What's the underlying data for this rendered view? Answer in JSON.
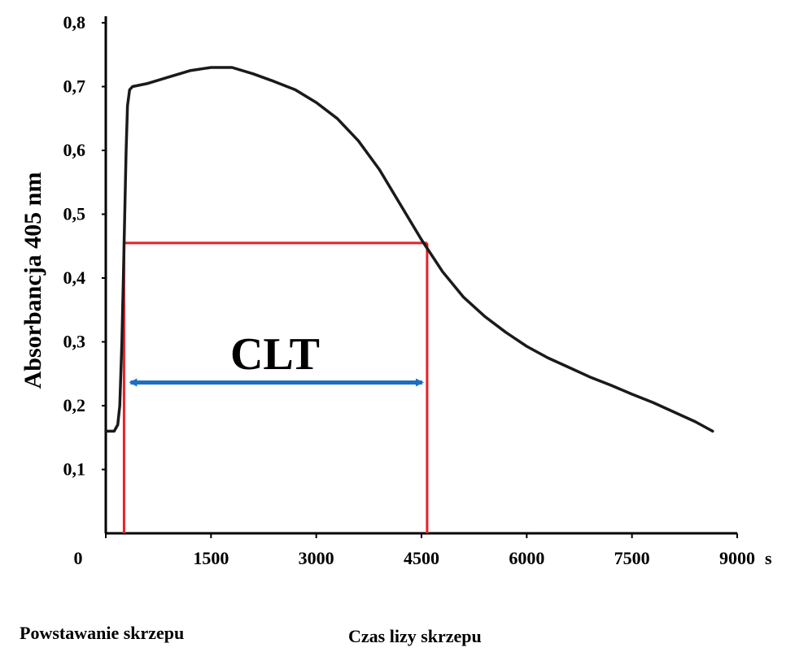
{
  "chart_data": {
    "type": "line",
    "title": "",
    "ylabel": "Absorbancja 405 nm",
    "xlabel": "",
    "x_unit": "s",
    "xlim": [
      0,
      9000
    ],
    "ylim": [
      0,
      0.8
    ],
    "x_ticks": [
      0,
      1500,
      3000,
      4500,
      6000,
      7500,
      9000
    ],
    "x_tick_labels": [
      "0",
      "1500",
      "3000",
      "4500",
      "6000",
      "7500",
      "9000"
    ],
    "y_ticks": [
      0.1,
      0.2,
      0.3,
      0.4,
      0.5,
      0.6,
      0.7,
      0.8
    ],
    "y_tick_labels": [
      "0,1",
      "0,2",
      "0,3",
      "0,4",
      "0,5",
      "0,6",
      "0,7",
      "0,8"
    ],
    "grid": false,
    "series": [
      {
        "color": "#1a1a1a",
        "points": [
          [
            0,
            0.16
          ],
          [
            120,
            0.16
          ],
          [
            170,
            0.17
          ],
          [
            200,
            0.2
          ],
          [
            230,
            0.3
          ],
          [
            250,
            0.4
          ],
          [
            270,
            0.5
          ],
          [
            290,
            0.6
          ],
          [
            310,
            0.67
          ],
          [
            340,
            0.695
          ],
          [
            380,
            0.7
          ],
          [
            600,
            0.705
          ],
          [
            900,
            0.715
          ],
          [
            1200,
            0.725
          ],
          [
            1500,
            0.73
          ],
          [
            1800,
            0.73
          ],
          [
            2100,
            0.72
          ],
          [
            2400,
            0.708
          ],
          [
            2700,
            0.695
          ],
          [
            3000,
            0.675
          ],
          [
            3300,
            0.65
          ],
          [
            3600,
            0.615
          ],
          [
            3900,
            0.57
          ],
          [
            4200,
            0.515
          ],
          [
            4500,
            0.46
          ],
          [
            4800,
            0.41
          ],
          [
            5100,
            0.37
          ],
          [
            5400,
            0.34
          ],
          [
            5700,
            0.315
          ],
          [
            6000,
            0.293
          ],
          [
            6300,
            0.275
          ],
          [
            6600,
            0.26
          ],
          [
            6900,
            0.245
          ],
          [
            7200,
            0.232
          ],
          [
            7500,
            0.218
          ],
          [
            7800,
            0.205
          ],
          [
            8100,
            0.19
          ],
          [
            8400,
            0.175
          ],
          [
            8650,
            0.16
          ]
        ]
      }
    ],
    "annotations": {
      "clt_label": "CLT",
      "clt_start_x": 260,
      "clt_end_x": 4580,
      "clt_level_y": 0.455,
      "arrow_y": 0.23,
      "box_color": "#e8202a",
      "arrow_color": "#1f6fbf"
    }
  },
  "captions": {
    "left": "Powstawanie skrzepu",
    "right": "Czas lizy skrzepu"
  }
}
